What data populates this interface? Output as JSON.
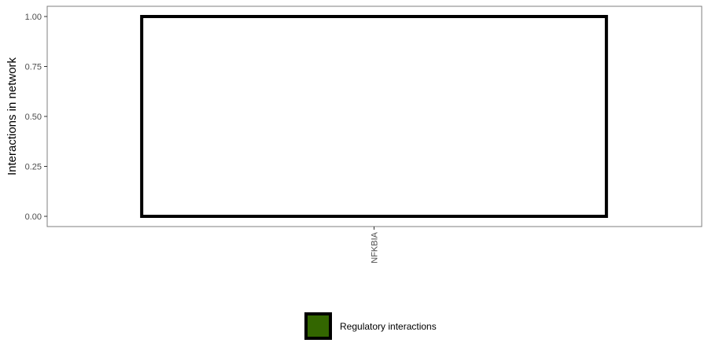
{
  "chart_data": {
    "type": "bar",
    "title": "",
    "xlabel": "",
    "ylabel": "Interactions in network",
    "categories": [
      "NFKBIA"
    ],
    "series": [
      {
        "name": "Regulatory interactions",
        "values": [
          1.0
        ],
        "fill": "#ffffff",
        "stroke": "#000000"
      }
    ],
    "ylim": [
      0,
      1
    ],
    "yticks": [
      0,
      0.25,
      0.5,
      0.75,
      1.0
    ],
    "ytick_labels": [
      "0.00",
      "0.25",
      "0.50",
      "0.75",
      "1.00"
    ],
    "grid": false,
    "legend": {
      "position": "bottom",
      "items": [
        {
          "label": "Regulatory interactions",
          "color": "#336600"
        }
      ]
    }
  }
}
